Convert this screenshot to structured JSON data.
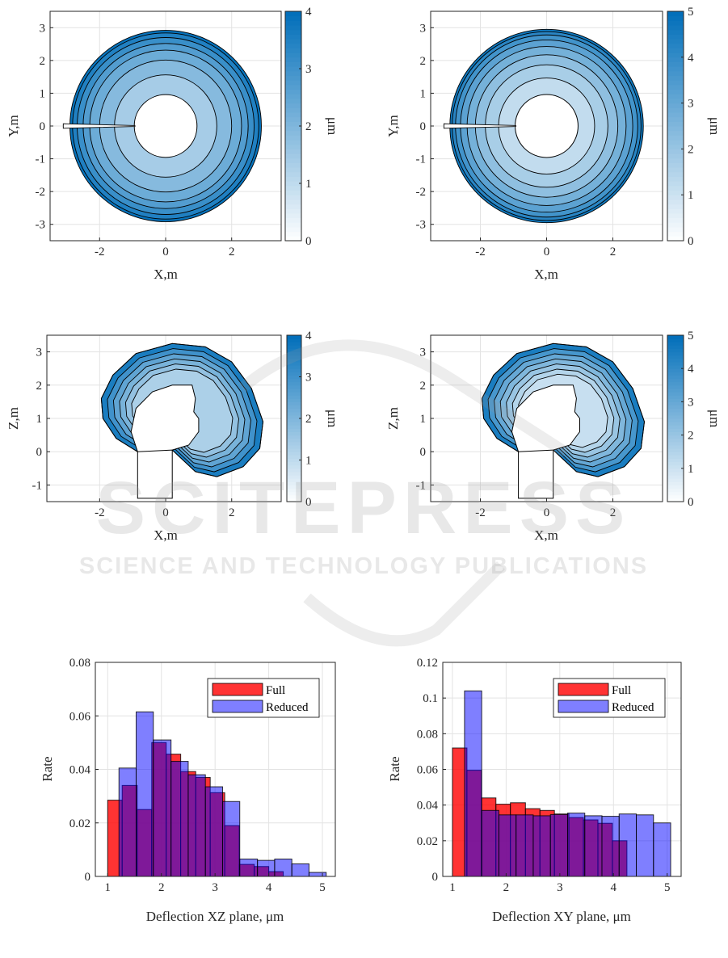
{
  "watermark": {
    "title": "SCITEPRESS",
    "subtitle": "SCIENCE AND TECHNOLOGY PUBLICATIONS"
  },
  "chart_data": [
    {
      "type": "heatmap",
      "plot": "filled-contour",
      "xlabel": "X,m",
      "ylabel": "Y,m",
      "xlim": [
        -3.5,
        3.5
      ],
      "ylim": [
        -3.5,
        3.5
      ],
      "xticks": [
        "-2",
        "0",
        "2"
      ],
      "xtick_values": [
        -2,
        0,
        2
      ],
      "yticks": [
        "3",
        "2",
        "1",
        "0",
        "-1",
        "-2",
        "-3"
      ],
      "ytick_values": [
        3,
        2,
        1,
        0,
        -1,
        -2,
        -3
      ],
      "colorbar": {
        "label": "μm",
        "ticks": [
          "0",
          "1",
          "2",
          "3",
          "4"
        ],
        "tick_values": [
          0,
          1,
          2,
          3,
          4
        ],
        "clim": [
          0,
          4
        ]
      },
      "shape": "annulus with slit",
      "inner_radius": 0.95,
      "outer_radius": 2.9,
      "contour_bands": [
        {
          "r_outer": 1.55,
          "value": 1.4
        },
        {
          "r_outer": 2.0,
          "value": 1.9
        },
        {
          "r_outer": 2.3,
          "value": 2.3
        },
        {
          "r_outer": 2.5,
          "value": 2.7
        },
        {
          "r_outer": 2.68,
          "value": 3.1
        },
        {
          "r_outer": 2.82,
          "value": 3.5
        },
        {
          "r_outer": 2.9,
          "value": 3.9
        }
      ],
      "grid": true
    },
    {
      "type": "heatmap",
      "plot": "filled-contour",
      "xlabel": "X,m",
      "ylabel": "Y,m",
      "xlim": [
        -3.5,
        3.5
      ],
      "ylim": [
        -3.5,
        3.5
      ],
      "xticks": [
        "-2",
        "0",
        "2"
      ],
      "xtick_values": [
        -2,
        0,
        2
      ],
      "yticks": [
        "3",
        "2",
        "1",
        "0",
        "-1",
        "-2",
        "-3"
      ],
      "ytick_values": [
        3,
        2,
        1,
        0,
        -1,
        -2,
        -3
      ],
      "colorbar": {
        "label": "μm",
        "ticks": [
          "0",
          "1",
          "2",
          "3",
          "4",
          "5"
        ],
        "tick_values": [
          0,
          1,
          2,
          3,
          4,
          5
        ],
        "clim": [
          0,
          5
        ]
      },
      "shape": "annulus with slit",
      "inner_radius": 0.95,
      "outer_radius": 2.92,
      "contour_bands": [
        {
          "r_outer": 1.45,
          "value": 1.2
        },
        {
          "r_outer": 1.85,
          "value": 1.7
        },
        {
          "r_outer": 2.15,
          "value": 2.2
        },
        {
          "r_outer": 2.4,
          "value": 2.7
        },
        {
          "r_outer": 2.6,
          "value": 3.2
        },
        {
          "r_outer": 2.75,
          "value": 3.7
        },
        {
          "r_outer": 2.85,
          "value": 4.2
        },
        {
          "r_outer": 2.92,
          "value": 4.7
        }
      ],
      "grid": true
    },
    {
      "type": "heatmap",
      "plot": "filled-contour",
      "xlabel": "X,m",
      "ylabel": "Z,m",
      "xlim": [
        -3.6,
        3.5
      ],
      "ylim": [
        -1.5,
        3.5
      ],
      "xticks": [
        "-2",
        "0",
        "2"
      ],
      "xtick_values": [
        -2,
        0,
        2
      ],
      "yticks": [
        "3",
        "2",
        "1",
        "0",
        "-1"
      ],
      "ytick_values": [
        3,
        2,
        1,
        0,
        -1
      ],
      "colorbar": {
        "label": "μm",
        "ticks": [
          "0",
          "1",
          "2",
          "3",
          "4"
        ],
        "tick_values": [
          0,
          1,
          2,
          3,
          4
        ],
        "clim": [
          0,
          4
        ]
      },
      "shape": "crescent",
      "contour_values": [
        3.6,
        3.0,
        2.5,
        2.1,
        1.7,
        1.3
      ],
      "grid": true
    },
    {
      "type": "heatmap",
      "plot": "filled-contour",
      "xlabel": "X,m",
      "ylabel": "Z,m",
      "xlim": [
        -3.5,
        3.5
      ],
      "ylim": [
        -1.5,
        3.5
      ],
      "xticks": [
        "-2",
        "0",
        "2"
      ],
      "xtick_values": [
        -2,
        0,
        2
      ],
      "yticks": [
        "3",
        "2",
        "1",
        "0",
        "-1"
      ],
      "ytick_values": [
        3,
        2,
        1,
        0,
        -1
      ],
      "colorbar": {
        "label": "μm",
        "ticks": [
          "0",
          "1",
          "2",
          "3",
          "4",
          "5"
        ],
        "tick_values": [
          0,
          1,
          2,
          3,
          4,
          5
        ],
        "clim": [
          0,
          5
        ]
      },
      "shape": "crescent",
      "contour_values": [
        4.5,
        3.6,
        3.0,
        2.5,
        2.0,
        1.5,
        1.1
      ],
      "grid": true
    },
    {
      "type": "bar",
      "plot": "histogram",
      "xlabel": "Deflection XZ plane, μm",
      "ylabel": "Rate",
      "xlim": [
        0.77,
        5.24
      ],
      "ylim": [
        0,
        0.08
      ],
      "xticks": [
        "1",
        "2",
        "3",
        "4",
        "5"
      ],
      "xtick_values": [
        1,
        2,
        3,
        4,
        5
      ],
      "yticks": [
        "0",
        "0.02",
        "0.04",
        "0.06",
        "0.08"
      ],
      "ytick_values": [
        0,
        0.02,
        0.04,
        0.06,
        0.08
      ],
      "legend_position": "top-right",
      "grid": true,
      "series": [
        {
          "name": "Full",
          "color": "#ff0000",
          "bin_edges": [
            1.0,
            1.27,
            1.55,
            1.82,
            2.09,
            2.36,
            2.64,
            2.91,
            3.18,
            3.45,
            3.73,
            4.0,
            4.27
          ],
          "values": [
            0.0285,
            0.034,
            0.025,
            0.05,
            0.0457,
            0.0392,
            0.037,
            0.0313,
            0.019,
            0.0045,
            0.0037,
            0.0018
          ]
        },
        {
          "name": "Reduced",
          "color": "#0000ff",
          "bin_edges": [
            1.21,
            1.53,
            1.85,
            2.18,
            2.5,
            2.82,
            3.14,
            3.46,
            3.79,
            4.11,
            4.43,
            4.75,
            5.07
          ],
          "values": [
            0.0405,
            0.0615,
            0.051,
            0.043,
            0.038,
            0.0335,
            0.028,
            0.0065,
            0.006,
            0.0065,
            0.0047,
            0.0015
          ]
        }
      ]
    },
    {
      "type": "bar",
      "plot": "histogram",
      "xlabel": "Deflection XY plane, μm",
      "ylabel": "Rate",
      "xlim": [
        0.82,
        5.26
      ],
      "ylim": [
        0,
        0.12
      ],
      "xticks": [
        "1",
        "2",
        "3",
        "4",
        "5"
      ],
      "xtick_values": [
        1,
        2,
        3,
        4,
        5
      ],
      "yticks": [
        "0",
        "0.02",
        "0.04",
        "0.06",
        "0.08",
        "0.1",
        "0.12"
      ],
      "ytick_values": [
        0,
        0.02,
        0.04,
        0.06,
        0.08,
        0.1,
        0.12
      ],
      "legend_position": "top-right",
      "grid": true,
      "series": [
        {
          "name": "Full",
          "color": "#ff0000",
          "bin_edges": [
            1.0,
            1.27,
            1.54,
            1.81,
            2.08,
            2.36,
            2.63,
            2.9,
            3.17,
            3.44,
            3.71,
            3.98,
            4.25
          ],
          "values": [
            0.072,
            0.0595,
            0.044,
            0.0405,
            0.0413,
            0.038,
            0.037,
            0.035,
            0.033,
            0.0317,
            0.0298,
            0.02
          ]
        },
        {
          "name": "Reduced",
          "color": "#0000ff",
          "bin_edges": [
            1.225,
            1.545,
            1.865,
            2.185,
            2.505,
            2.825,
            3.145,
            3.465,
            3.785,
            4.105,
            4.425,
            4.745,
            5.065
          ],
          "values": [
            0.104,
            0.037,
            0.0345,
            0.0345,
            0.034,
            0.0347,
            0.0355,
            0.034,
            0.0337,
            0.035,
            0.0345,
            0.03
          ]
        }
      ]
    }
  ]
}
